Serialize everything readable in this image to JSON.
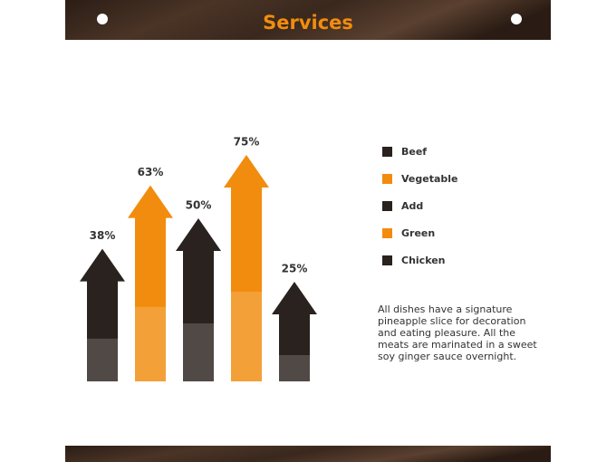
{
  "header": {
    "title": "Services"
  },
  "chart_data": {
    "type": "bar",
    "categories": [
      "Beef",
      "Vegetable",
      "Add",
      "Green",
      "Chicken"
    ],
    "values": [
      38,
      63,
      50,
      75,
      25
    ],
    "value_labels": [
      "38%",
      "63%",
      "50%",
      "75%",
      "25%"
    ],
    "colors": [
      "#2a221e",
      "#f28c0e",
      "#2a221e",
      "#f28c0e",
      "#2a221e"
    ]
  },
  "note": "All dishes have a signature pineapple slice for decoration and eating pleasure.  All the meats are marinated in a sweet soy ginger sauce overnight."
}
